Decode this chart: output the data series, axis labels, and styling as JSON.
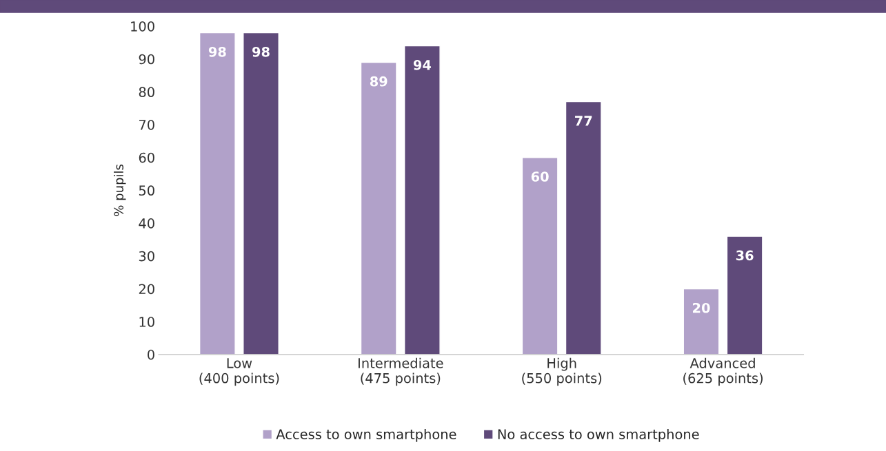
{
  "chart_data": {
    "type": "bar",
    "ylabel": "% pupils",
    "categories": [
      "Low\n(400 points)",
      "Intermediate\n(475 points)",
      "High\n(550 points)",
      "Advanced\n(625 points)"
    ],
    "series": [
      {
        "name": "Access to own smartphone",
        "color": "#b1a1c9",
        "values": [
          98,
          89,
          60,
          20
        ]
      },
      {
        "name": "No access to own smartphone",
        "color": "#5f4a7a",
        "values": [
          98,
          94,
          77,
          36
        ]
      }
    ],
    "ylim": [
      0,
      100
    ],
    "yticks": [
      0,
      10,
      20,
      30,
      40,
      50,
      60,
      70,
      80,
      90,
      100
    ],
    "data_labels": true,
    "legend": "bottom",
    "grid": false
  }
}
